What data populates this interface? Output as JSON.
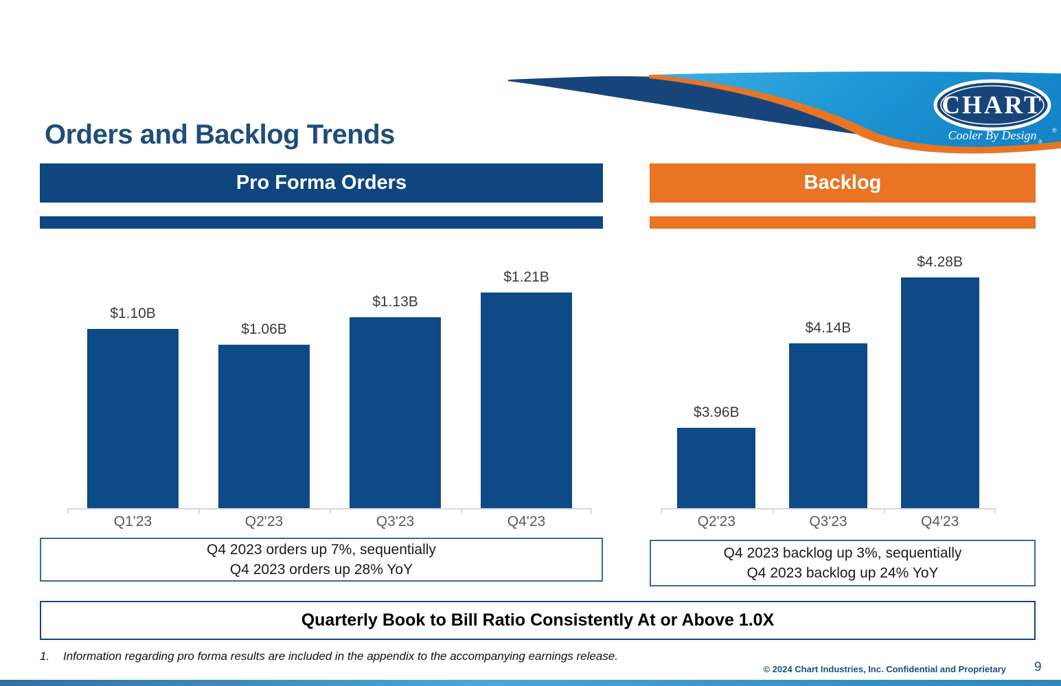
{
  "slide": {
    "title": "Orders and Backlog Trends",
    "banner": "Quarterly Book to Bill Ratio Consistently At or Above 1.0X",
    "footnote_number": "1.",
    "footnote_text": "Information regarding pro forma results are included in the appendix to the accompanying earnings release.",
    "footer": "© 2024 Chart Industries, Inc. Confidential and Proprietary",
    "page_number": "9"
  },
  "logo": {
    "name": "CHART",
    "tagline": "Cooler By Design",
    "registered_mark": "®"
  },
  "left_panel": {
    "header": "Pro Forma Orders",
    "caption_line1": "Q4 2023 orders up 7%, sequentially",
    "caption_line2": "Q4 2023 orders up 28% YoY"
  },
  "right_panel": {
    "header": "Backlog",
    "caption_line1": "Q4 2023 backlog up 3%, sequentially",
    "caption_line2": "Q4 2023 backlog up 24% YoY"
  },
  "colors": {
    "navy": "#0F4680",
    "orange": "#E87424",
    "title_blue": "#1F4E79",
    "bar_blue": "#0E4A86",
    "axis_gray": "#D8D8D8",
    "category_label_gray": "#595959",
    "value_label_dark": "#3A3A3A",
    "caption_border_blue": "#356A9A"
  },
  "chart_data": [
    {
      "id": "orders",
      "type": "bar",
      "title": "Pro Forma Orders",
      "unit": "USD billions",
      "categories": [
        "Q1'23",
        "Q2'23",
        "Q3'23",
        "Q4'23"
      ],
      "values": [
        1.1,
        1.06,
        1.13,
        1.21
      ],
      "labels": [
        "$1.10B",
        "$1.06B",
        "$1.13B",
        "$1.21B"
      ],
      "ylim": [
        0.65,
        1.25
      ],
      "grid": false,
      "legend": "none",
      "bar_color": "#0E4A86"
    },
    {
      "id": "backlog",
      "type": "bar",
      "title": "Backlog",
      "unit": "USD billions",
      "categories": [
        "Q2'23",
        "Q3'23",
        "Q4'23"
      ],
      "values": [
        3.96,
        4.14,
        4.28
      ],
      "labels": [
        "$3.96B",
        "$4.14B",
        "$4.28B"
      ],
      "ylim": [
        3.79,
        4.35
      ],
      "grid": false,
      "legend": "none",
      "bar_color": "#0E4A86"
    }
  ]
}
